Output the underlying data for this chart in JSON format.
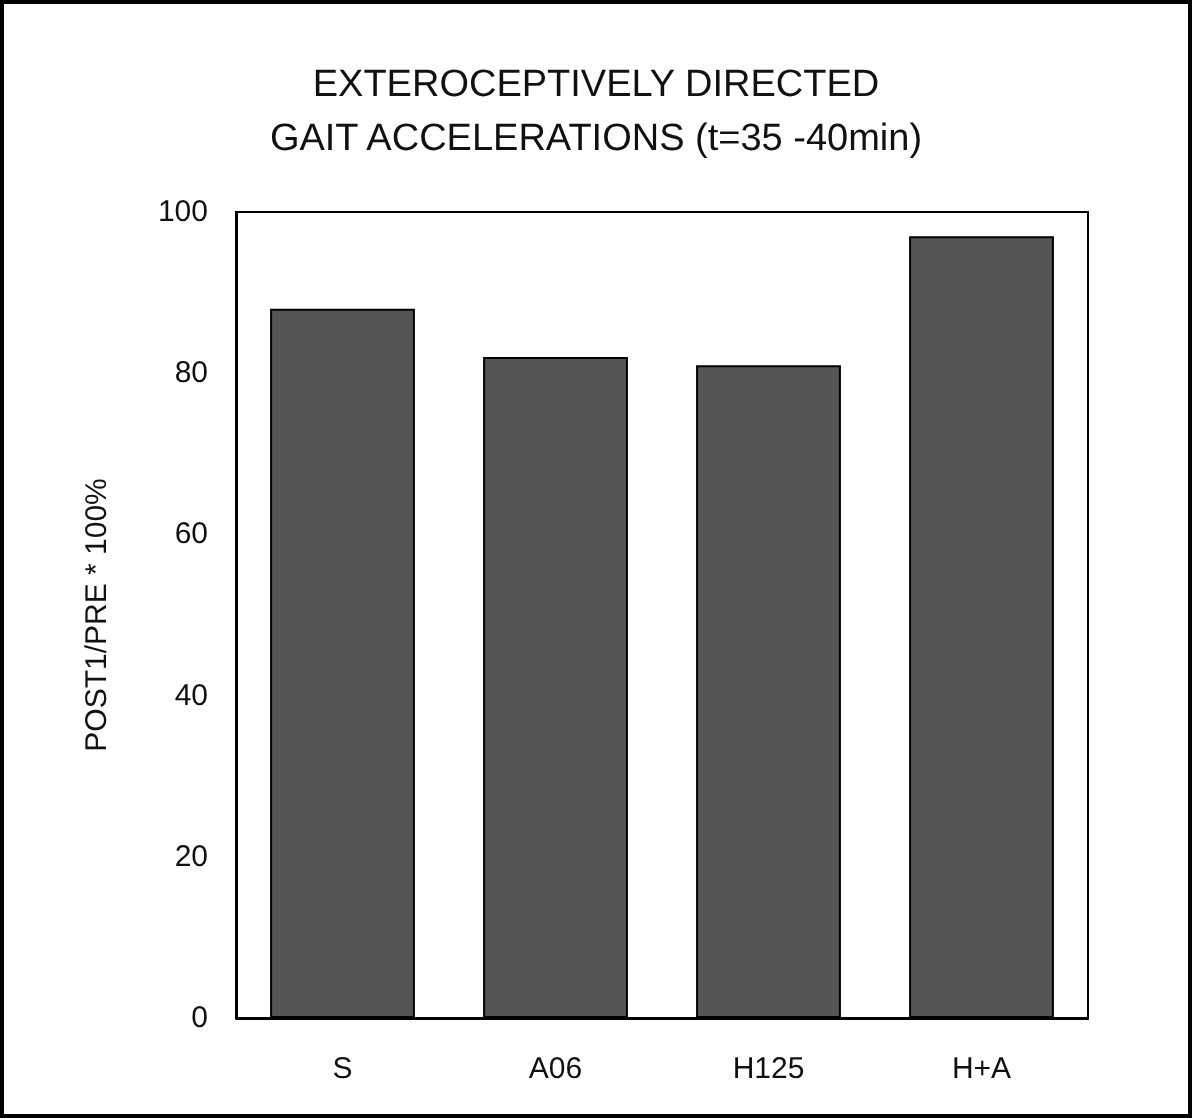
{
  "chart_data": {
    "type": "bar",
    "title": "EXTEROCEPTIVELY DIRECTED\nGAIT ACCELERATIONS (t=35 -40min)",
    "ylabel": "POST1/PRE * 100%",
    "categories": [
      "S",
      "A06",
      "H125",
      "H+A"
    ],
    "values": [
      88,
      82,
      81,
      97
    ],
    "color": "#555555",
    "ylim": [
      0,
      100
    ],
    "yticks": [
      0,
      20,
      40,
      60,
      80,
      100
    ],
    "grid": false
  }
}
